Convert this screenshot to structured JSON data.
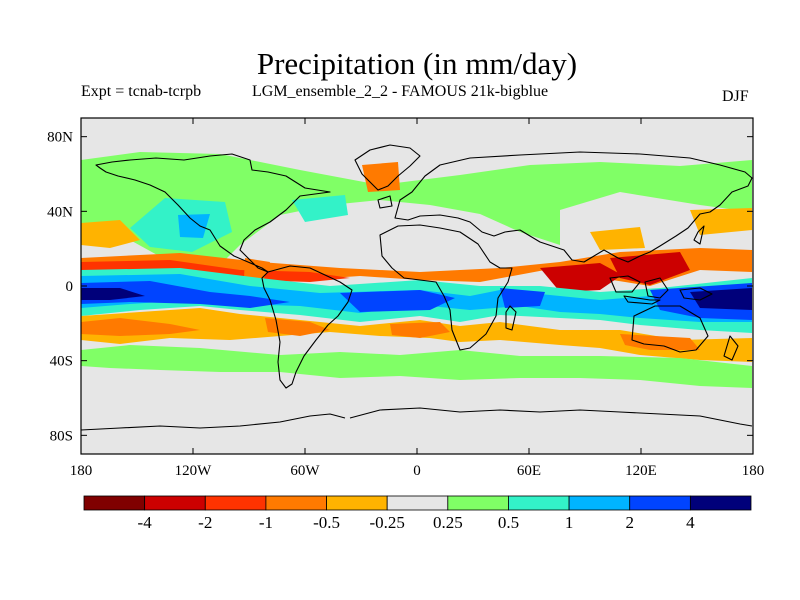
{
  "title": "Precipitation (in mm/day)",
  "experiment": "Expt = tcnab-tcrpb",
  "ensemble": "LGM_ensemble_2_2 - FAMOUS 21k-bigblue",
  "season": "DJF",
  "map": {
    "x_ticks": [
      "180",
      "120W",
      "60W",
      "0",
      "60E",
      "120E",
      "180"
    ],
    "y_ticks": [
      "80N",
      "40N",
      "0",
      "40S",
      "80S"
    ],
    "no_data_color": "#e6e6e6"
  },
  "colorbar": {
    "colors": [
      "#800000",
      "#cc0000",
      "#ff3300",
      "#ff7a00",
      "#ffb300",
      "#e6e6e6",
      "#80ff66",
      "#33f2c8",
      "#00b4ff",
      "#0044ff",
      "#00007a"
    ],
    "labels": [
      "-4",
      "-2",
      "-1",
      "-0.5",
      "-0.25",
      "0.25",
      "0.5",
      "1",
      "2",
      "4"
    ]
  }
}
